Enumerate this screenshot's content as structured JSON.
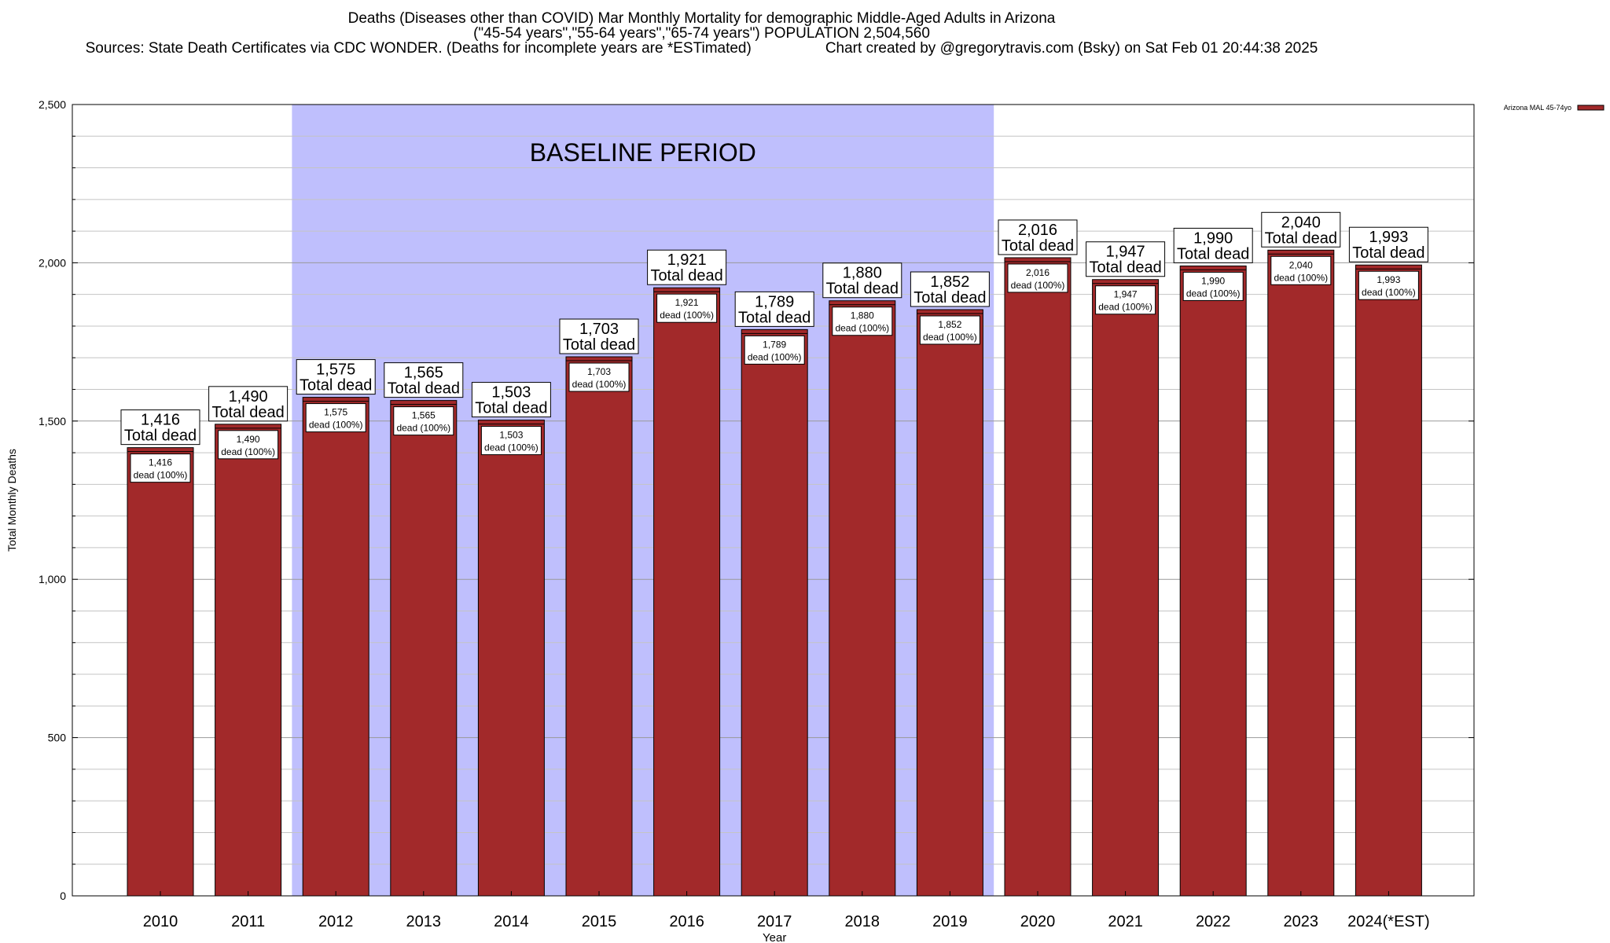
{
  "chart_data": {
    "type": "bar",
    "title_lines": [
      "Deaths (Diseases other than COVID) Mar Monthly Mortality for demographic Middle-Aged Adults in Arizona",
      "(\"45-54 years\",\"55-64 years\",\"65-74 years\") POPULATION 2,504,560"
    ],
    "sources_text": "Sources: State Death Certificates via CDC WONDER. (Deaths for incomplete years are *ESTimated)",
    "credit_text": "Chart created by @gregorytravis.com (Bsky) on Sat Feb 01 20:44:38 2025",
    "xlabel": "Year",
    "ylabel": "Total Monthly Deaths",
    "ylim": [
      0,
      2500
    ],
    "yticks": [
      0,
      500,
      1000,
      1500,
      2000,
      2500
    ],
    "ytick_labels": [
      "0",
      "500",
      "1,000",
      "1,500",
      "2,000",
      "2,500"
    ],
    "categories": [
      "2010",
      "2011",
      "2012",
      "2013",
      "2014",
      "2015",
      "2016",
      "2017",
      "2018",
      "2019",
      "2020",
      "2021",
      "2022",
      "2023",
      "2024(*EST)"
    ],
    "series": [
      {
        "name": "Arizona MAL 45-74yo",
        "color": "#a2292a",
        "values": [
          1416,
          1490,
          1575,
          1565,
          1503,
          1703,
          1921,
          1789,
          1880,
          1852,
          2016,
          1947,
          1990,
          2040,
          1993
        ]
      }
    ],
    "value_labels": [
      "1,416",
      "1,490",
      "1,575",
      "1,565",
      "1,503",
      "1,703",
      "1,921",
      "1,789",
      "1,880",
      "1,852",
      "2,016",
      "1,947",
      "1,990",
      "2,040",
      "1,993"
    ],
    "top_label_suffix": "Total dead",
    "inner_label_suffix": "dead (100%)",
    "baseline": {
      "label": "BASELINE PERIOD",
      "start": "2012",
      "end": "2019",
      "color": "#bfbffd"
    },
    "grid": true,
    "legend_position": "top-right"
  }
}
